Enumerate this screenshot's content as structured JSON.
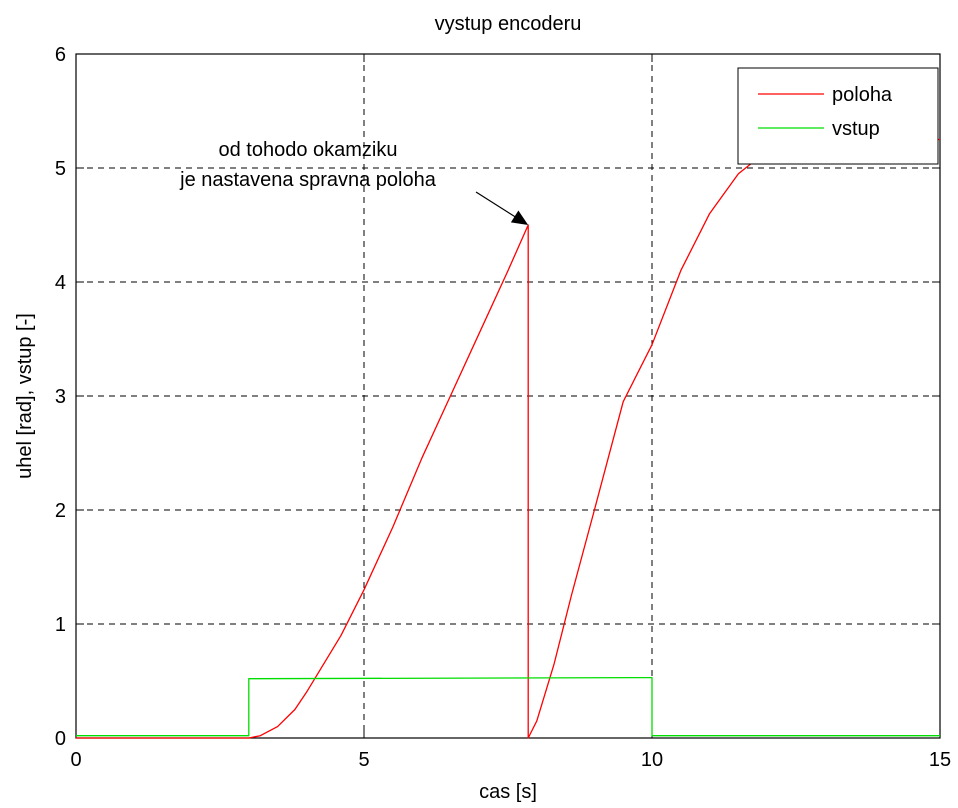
{
  "chart_data": {
    "type": "line",
    "title": "vystup encoderu",
    "xlabel": "cas [s]",
    "ylabel": "uhel [rad], vstup [-]",
    "xlim": [
      0,
      15
    ],
    "ylim": [
      0,
      6
    ],
    "xticks": [
      0,
      5,
      10,
      15
    ],
    "yticks": [
      0,
      1,
      2,
      3,
      4,
      5,
      6
    ],
    "xtick_labels": [
      "0",
      "5",
      "10",
      "15"
    ],
    "ytick_labels": [
      "0",
      "1",
      "2",
      "3",
      "4",
      "5",
      "6"
    ],
    "grid": true,
    "legend": {
      "placement": "top-right",
      "entries": [
        "poloha",
        "vstup"
      ]
    },
    "series": [
      {
        "name": "poloha",
        "color": "#ff0000",
        "points": [
          [
            0,
            0
          ],
          [
            3.0,
            0
          ],
          [
            3.2,
            0.02
          ],
          [
            3.5,
            0.1
          ],
          [
            3.8,
            0.25
          ],
          [
            4.0,
            0.4
          ],
          [
            4.3,
            0.65
          ],
          [
            4.6,
            0.9
          ],
          [
            5.0,
            1.3
          ],
          [
            5.5,
            1.85
          ],
          [
            6.0,
            2.45
          ],
          [
            6.5,
            3.0
          ],
          [
            7.0,
            3.55
          ],
          [
            7.5,
            4.1
          ],
          [
            7.85,
            4.5
          ],
          [
            7.85,
            0
          ],
          [
            8.0,
            0.15
          ],
          [
            8.3,
            0.65
          ],
          [
            8.6,
            1.25
          ],
          [
            9.0,
            2.0
          ],
          [
            9.5,
            2.95
          ],
          [
            10.0,
            3.45
          ],
          [
            10.5,
            4.1
          ],
          [
            11.0,
            4.6
          ],
          [
            11.5,
            4.95
          ],
          [
            12.0,
            5.15
          ],
          [
            12.5,
            5.24
          ],
          [
            13.0,
            5.25
          ],
          [
            15.0,
            5.25
          ]
        ]
      },
      {
        "name": "vstup",
        "color": "#00dd00",
        "points": [
          [
            0,
            0.02
          ],
          [
            3.0,
            0.02
          ],
          [
            3.0,
            0.52
          ],
          [
            10.0,
            0.53
          ],
          [
            10.0,
            0.02
          ],
          [
            15.0,
            0.02
          ]
        ]
      }
    ],
    "annotations": [
      {
        "lines": [
          "od tohodo okamziku",
          "je nastavena spravna poloha"
        ],
        "arrow_to": [
          7.85,
          4.5
        ]
      }
    ]
  }
}
